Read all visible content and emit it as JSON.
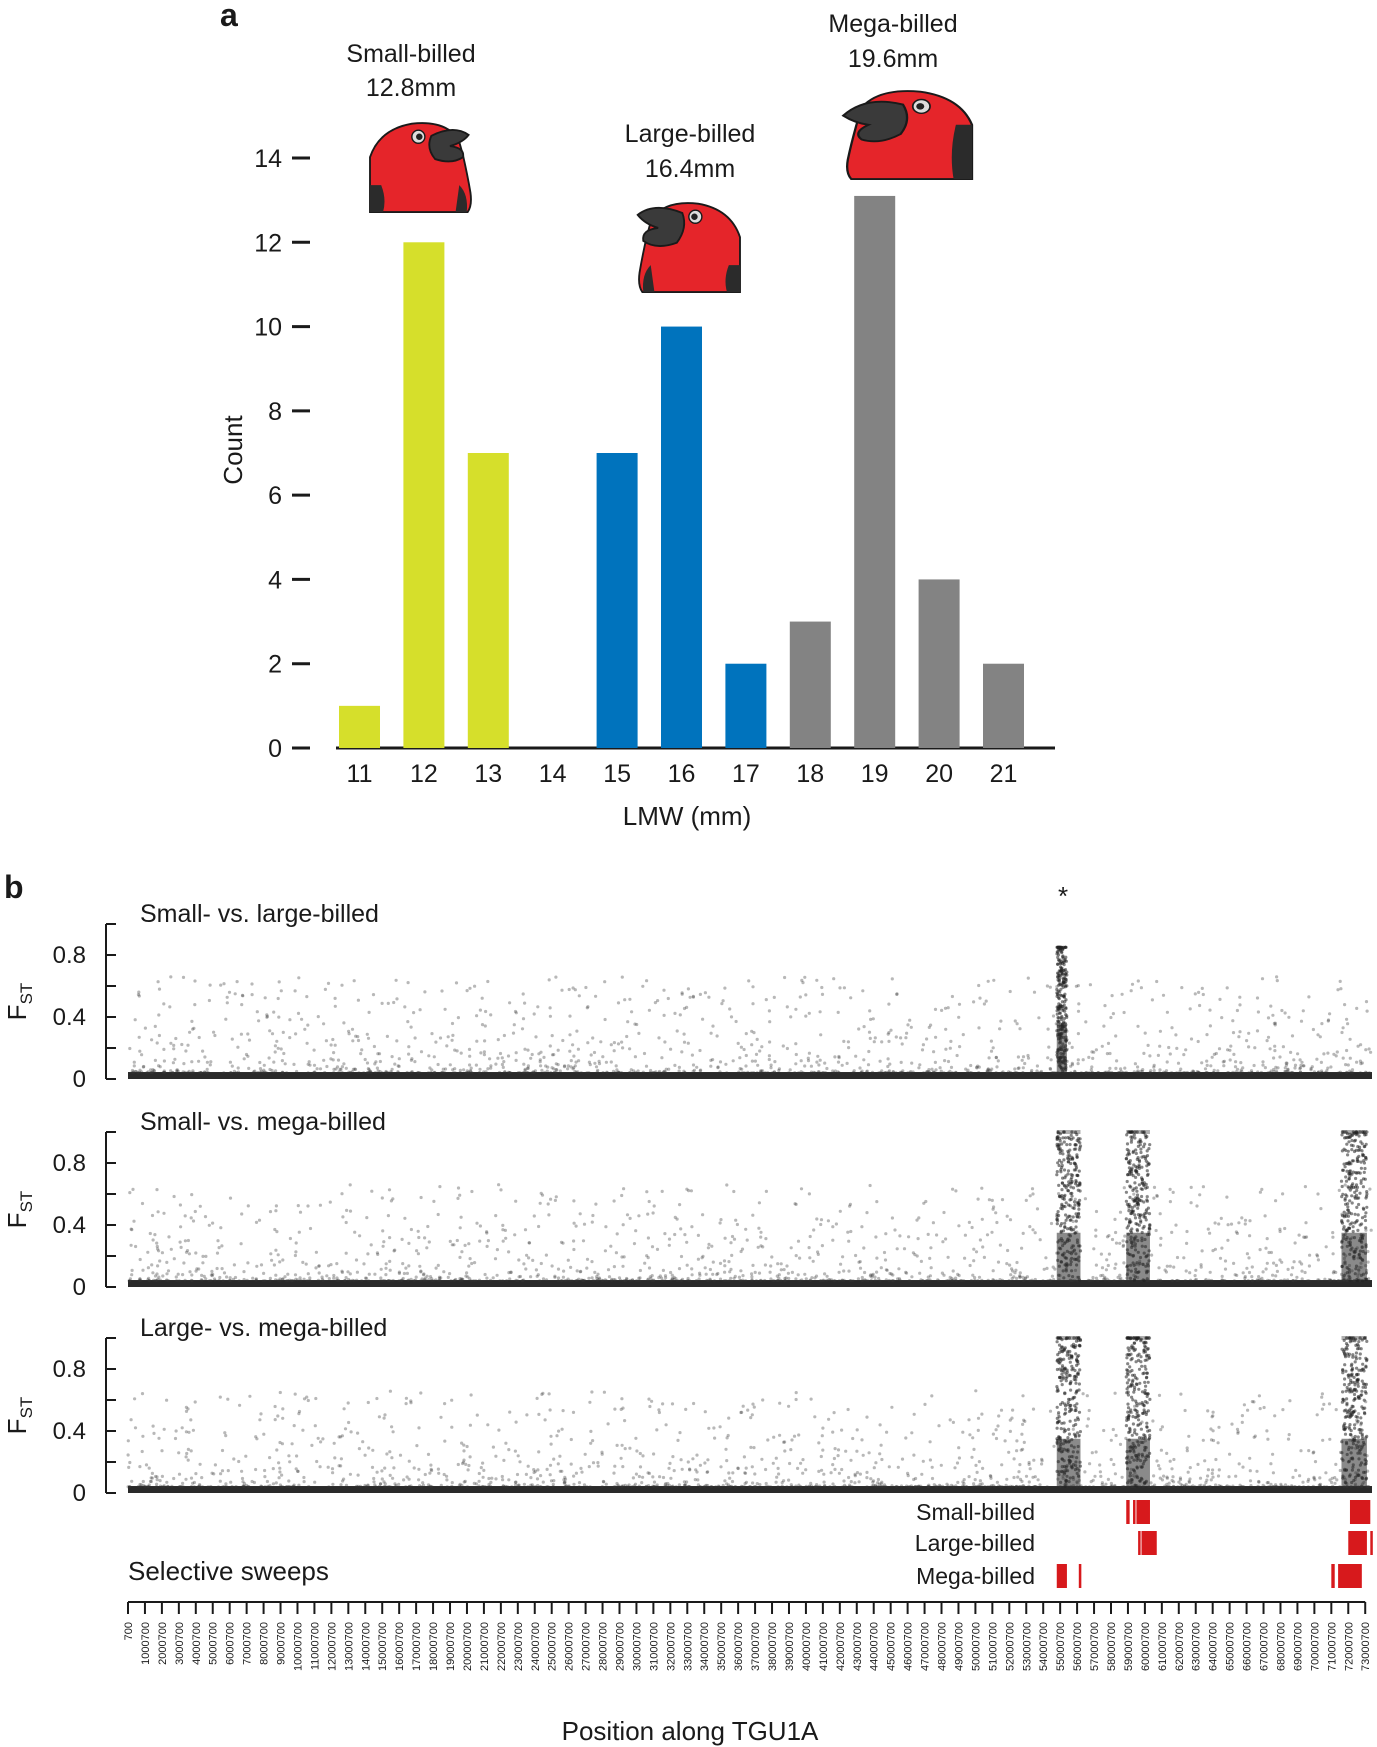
{
  "panel_a": {
    "letter": "a",
    "groups": [
      {
        "line1": "Small-billed",
        "line2": "12.8mm",
        "color": "#d6df2b"
      },
      {
        "line1": "Large-billed",
        "line2": "16.4mm",
        "color": "#0073bd"
      },
      {
        "line1": "Mega-billed",
        "line2": "19.6mm",
        "color": "#838383"
      }
    ],
    "bird_colors": {
      "head": "#e5252a",
      "beak": "#3a3a3a",
      "dark": "#2b2b2b"
    }
  },
  "panel_b": {
    "letter": "b",
    "star": "*",
    "fst_label_main": "F",
    "fst_label_sub": "ST",
    "comparisons": [
      "Small- vs. large-billed",
      "Small- vs. mega-billed",
      "Large- vs. mega-billed"
    ],
    "sweeps_title": "Selective sweeps",
    "sweep_color": "#d7191c",
    "sweeps": [
      {
        "label": "Small-billed",
        "regions": [
          [
            58900700,
            59100700
          ],
          [
            59300700,
            59400700
          ],
          [
            59500700,
            60300700
          ],
          [
            72100700,
            73300700
          ]
        ]
      },
      {
        "label": "Large-billed",
        "regions": [
          [
            59600700,
            59700700
          ],
          [
            59800700,
            60700700
          ],
          [
            72000700,
            73100700
          ],
          [
            73300700,
            73350700
          ]
        ]
      },
      {
        "label": "Mega-billed",
        "regions": [
          [
            54800700,
            55400700
          ],
          [
            56100700,
            56250700
          ],
          [
            71000700,
            71200700
          ],
          [
            71400700,
            72800700
          ]
        ]
      }
    ],
    "x_ticks": [
      "700",
      "1000700",
      "2000700",
      "3000700",
      "4000700",
      "5000700",
      "6000700",
      "7000700",
      "8000700",
      "9000700",
      "10000700",
      "11000700",
      "12000700",
      "13000700",
      "14000700",
      "15000700",
      "16000700",
      "17000700",
      "18000700",
      "19000700",
      "20000700",
      "21000700",
      "22000700",
      "23000700",
      "24000700",
      "25000700",
      "26000700",
      "27000700",
      "28000700",
      "29000700",
      "30000700",
      "31000700",
      "32000700",
      "33000700",
      "34000700",
      "35000700",
      "36000700",
      "37000700",
      "38000700",
      "39000700",
      "40000700",
      "41000700",
      "42000700",
      "43000700",
      "44000700",
      "45000700",
      "46000700",
      "47000700",
      "48000700",
      "49000700",
      "50000700",
      "51000700",
      "52000700",
      "53000700",
      "54000700",
      "55000700",
      "56000700",
      "57000700",
      "58000700",
      "59000700",
      "60000700",
      "61000700",
      "62000700",
      "63000700",
      "64000700",
      "65000700",
      "66000700",
      "67000700",
      "68000700",
      "69000700",
      "70000700",
      "71000700",
      "72000700",
      "73000700"
    ]
  },
  "chart_data": [
    {
      "type": "bar",
      "categories": [
        "11",
        "12",
        "13",
        "14",
        "15",
        "16",
        "17",
        "18",
        "19",
        "20",
        "21"
      ],
      "values": [
        1,
        12,
        7,
        0,
        7,
        10,
        2,
        3,
        13.1,
        4,
        2
      ],
      "bar_colors": [
        "#d6df2b",
        "#d6df2b",
        "#d6df2b",
        "#d6df2b",
        "#0073bd",
        "#0073bd",
        "#0073bd",
        "#838383",
        "#838383",
        "#838383",
        "#838383"
      ],
      "xlabel": "LMW (mm)",
      "ylabel": "Count",
      "ylim": [
        0,
        14
      ],
      "yticks": [
        "0",
        "2",
        "4",
        "6",
        "8",
        "10",
        "12",
        "14"
      ],
      "grid": false
    },
    {
      "type": "scatter",
      "xlabel": "Position along TGU1A",
      "ylim": [
        0,
        1
      ],
      "yticks": [
        "0",
        "0.4",
        "0.8"
      ],
      "xlim": [
        700,
        73400700
      ],
      "grid": false,
      "panels": [
        "Small- vs. large-billed",
        "Small- vs. mega-billed",
        "Large- vs. mega-billed"
      ],
      "peak_regions": [
        [
          {
            "from": 54800000,
            "to": 55400000,
            "max_fst": 0.85
          }
        ],
        [
          {
            "from": 54800000,
            "to": 56200000,
            "max_fst": 1.0
          },
          {
            "from": 58900000,
            "to": 60300000,
            "max_fst": 1.0
          },
          {
            "from": 71600000,
            "to": 73100000,
            "max_fst": 1.0
          }
        ],
        [
          {
            "from": 54800000,
            "to": 56200000,
            "max_fst": 1.0
          },
          {
            "from": 58900000,
            "to": 60300000,
            "max_fst": 1.0
          },
          {
            "from": 71600000,
            "to": 73100000,
            "max_fst": 1.0
          }
        ]
      ]
    }
  ]
}
